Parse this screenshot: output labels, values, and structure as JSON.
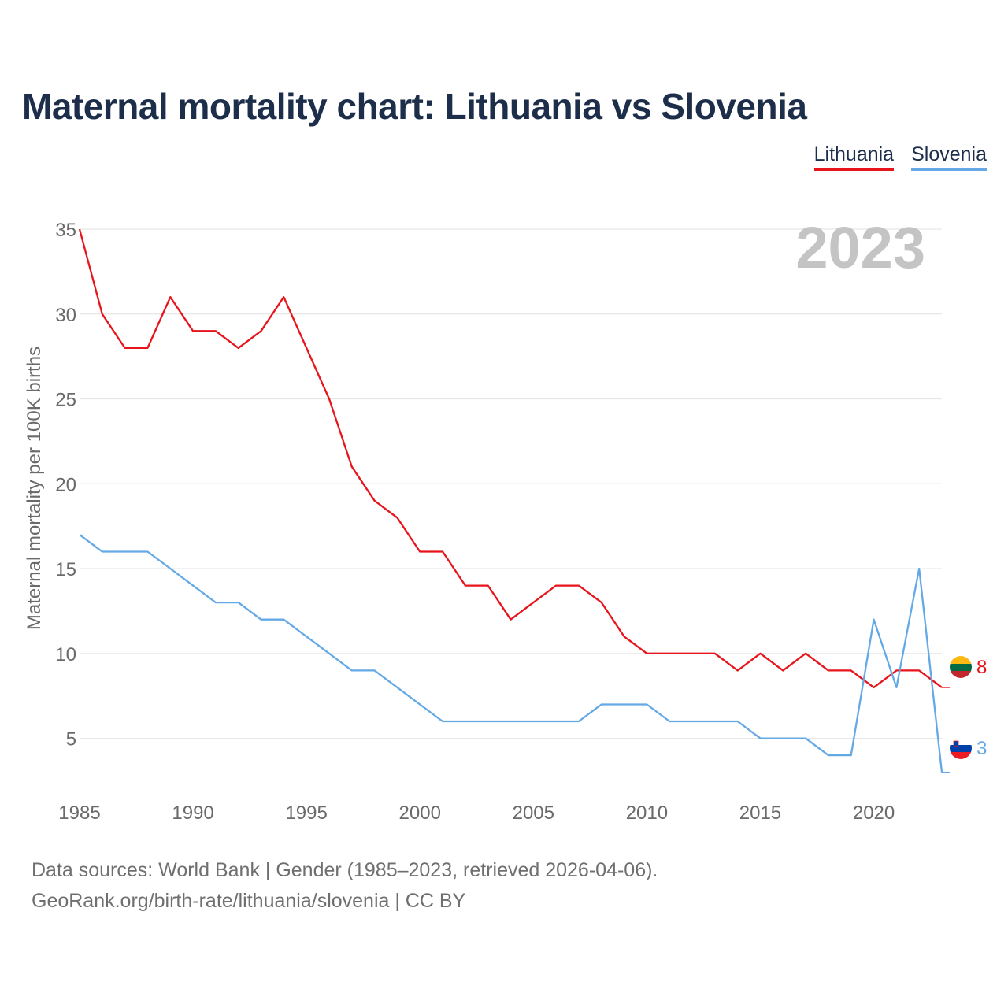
{
  "title": "Maternal mortality chart: Lithuania vs Slovenia",
  "legend": {
    "lithuania": "Lithuania",
    "slovenia": "Slovenia"
  },
  "year_label": "2023",
  "colors": {
    "lithuania": "#e8141c",
    "slovenia": "#64a9e6",
    "title": "#1c2e4a",
    "grid": "#e6e6e6",
    "axis_text": "#6a6a6a",
    "year": "#c4c4c4"
  },
  "source": {
    "line1": "Data sources: World Bank | Gender (1985–2023, retrieved 2026-04-06).",
    "line2": "GeoRank.org/birth-rate/lithuania/slovenia | CC BY"
  },
  "chart_data": {
    "type": "line",
    "title": "Maternal mortality chart: Lithuania vs Slovenia",
    "ylabel": "Maternal mortality per 100K births",
    "xlabel": "",
    "xlim": [
      1985,
      2023
    ],
    "ylim": [
      1.5,
      35
    ],
    "x_ticks": [
      1985,
      1990,
      1995,
      2000,
      2005,
      2010,
      2015,
      2020
    ],
    "y_ticks": [
      5,
      10,
      15,
      20,
      25,
      30,
      35
    ],
    "x": [
      1985,
      1986,
      1987,
      1988,
      1989,
      1990,
      1991,
      1992,
      1993,
      1994,
      1995,
      1996,
      1997,
      1998,
      1999,
      2000,
      2001,
      2002,
      2003,
      2004,
      2005,
      2006,
      2007,
      2008,
      2009,
      2010,
      2011,
      2012,
      2013,
      2014,
      2015,
      2016,
      2017,
      2018,
      2019,
      2020,
      2021,
      2022,
      2023
    ],
    "series": [
      {
        "name": "Lithuania",
        "key": "lithuania",
        "end_label": "8",
        "values": [
          35,
          30,
          28,
          28,
          31,
          29,
          29,
          28,
          29,
          31,
          28,
          25,
          21,
          19,
          18,
          16,
          16,
          14,
          14,
          12,
          13,
          14,
          14,
          13,
          11,
          10,
          10,
          10,
          10,
          9,
          10,
          9,
          10,
          9,
          9,
          8,
          9,
          9,
          8
        ]
      },
      {
        "name": "Slovenia",
        "key": "slovenia",
        "end_label": "3",
        "values": [
          17,
          16,
          16,
          16,
          15,
          14,
          13,
          13,
          12,
          12,
          11,
          10,
          9,
          9,
          8,
          7,
          6,
          6,
          6,
          6,
          6,
          6,
          6,
          7,
          7,
          7,
          6,
          6,
          6,
          6,
          5,
          5,
          5,
          4,
          4,
          12,
          8,
          15,
          3
        ]
      }
    ]
  }
}
